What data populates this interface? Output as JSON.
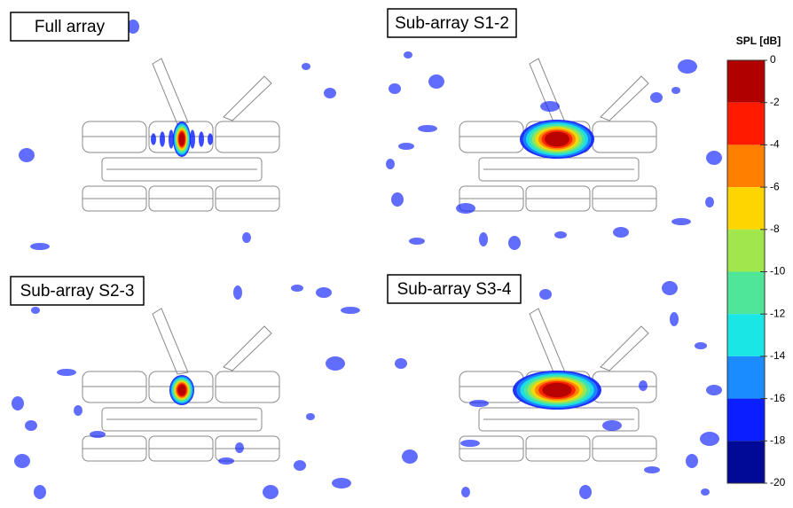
{
  "panels": [
    {
      "label": "Full array"
    },
    {
      "label": "Sub-array S1-2"
    },
    {
      "label": "Sub-array S2-3"
    },
    {
      "label": "Sub-array S3-4"
    }
  ],
  "colorbar": {
    "title": "SPL [dB]",
    "lim": [
      -20,
      0
    ],
    "ticks": [
      0,
      -2,
      -4,
      -6,
      -8,
      -10,
      -12,
      -14,
      -16,
      -18,
      -20
    ],
    "colors": [
      "#b00000",
      "#ff1a00",
      "#ff8000",
      "#ffd500",
      "#a0e64d",
      "#50e69a",
      "#1ae6e6",
      "#1a8cff",
      "#0a1eff",
      "#000a96"
    ]
  }
}
